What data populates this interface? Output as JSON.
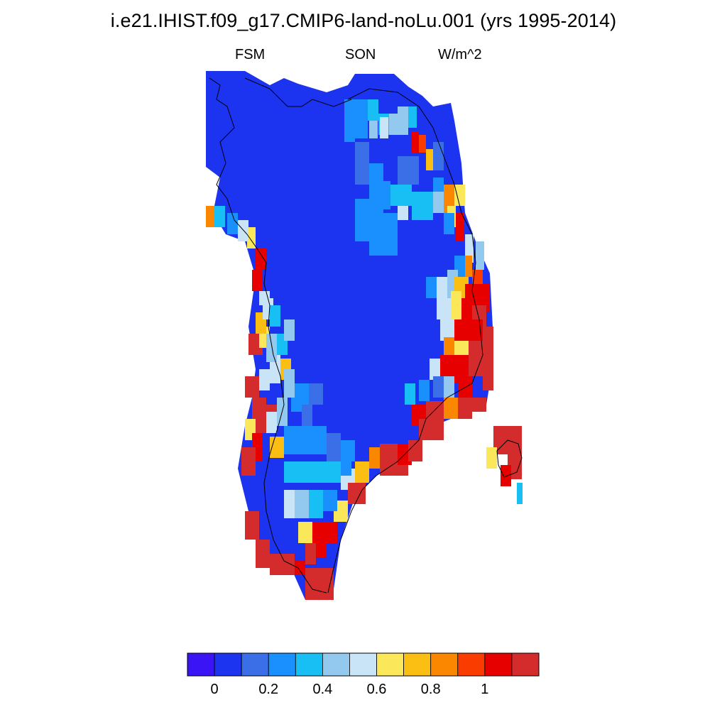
{
  "header": {
    "title": "i.e21.IHIST.f09_g17.CMIP6-land-noLu.001 (yrs 1995-2014)",
    "variable": "FSM",
    "season": "SON",
    "units": "W/m^2"
  },
  "colorbar": {
    "colors": [
      "#3b14f5",
      "#1c33f0",
      "#3a6fe8",
      "#1a90ff",
      "#17bff5",
      "#93c9ef",
      "#c8e4f6",
      "#fbe85a",
      "#fbbf14",
      "#fb8600",
      "#fb3c00",
      "#e60000",
      "#d42c2c"
    ],
    "tick_labels": [
      "0",
      "0.2",
      "0.4",
      "0.6",
      "0.8",
      "1"
    ],
    "levels": [
      0,
      0.1,
      0.2,
      0.3,
      0.4,
      0.5,
      0.6,
      0.7,
      0.8,
      0.9,
      1.0,
      1.1
    ]
  },
  "map": {
    "region": "Greenland",
    "interior_color": "#1c33f0",
    "coast_color": "#d42c2c"
  }
}
